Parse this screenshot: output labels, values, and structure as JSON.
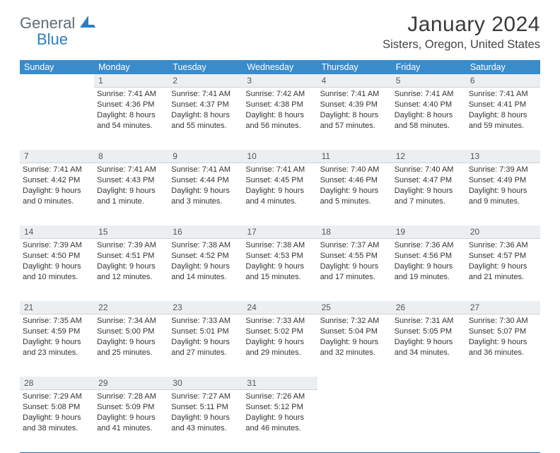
{
  "brand": {
    "general": "General",
    "blue": "Blue"
  },
  "title": "January 2024",
  "location": "Sisters, Oregon, United States",
  "colors": {
    "header_bg": "#3a8bca",
    "header_text": "#ffffff",
    "daynum_bg": "#eceff1",
    "divider": "#2f74aa",
    "body_text": "#333333",
    "logo_gray": "#5a6a77",
    "logo_blue": "#2c7fbf"
  },
  "days_of_week": [
    "Sunday",
    "Monday",
    "Tuesday",
    "Wednesday",
    "Thursday",
    "Friday",
    "Saturday"
  ],
  "start_weekday": 1,
  "days": [
    {
      "n": 1,
      "sunrise": "7:41 AM",
      "sunset": "4:36 PM",
      "daylight": "8 hours and 54 minutes."
    },
    {
      "n": 2,
      "sunrise": "7:41 AM",
      "sunset": "4:37 PM",
      "daylight": "8 hours and 55 minutes."
    },
    {
      "n": 3,
      "sunrise": "7:42 AM",
      "sunset": "4:38 PM",
      "daylight": "8 hours and 56 minutes."
    },
    {
      "n": 4,
      "sunrise": "7:41 AM",
      "sunset": "4:39 PM",
      "daylight": "8 hours and 57 minutes."
    },
    {
      "n": 5,
      "sunrise": "7:41 AM",
      "sunset": "4:40 PM",
      "daylight": "8 hours and 58 minutes."
    },
    {
      "n": 6,
      "sunrise": "7:41 AM",
      "sunset": "4:41 PM",
      "daylight": "8 hours and 59 minutes."
    },
    {
      "n": 7,
      "sunrise": "7:41 AM",
      "sunset": "4:42 PM",
      "daylight": "9 hours and 0 minutes."
    },
    {
      "n": 8,
      "sunrise": "7:41 AM",
      "sunset": "4:43 PM",
      "daylight": "9 hours and 1 minute."
    },
    {
      "n": 9,
      "sunrise": "7:41 AM",
      "sunset": "4:44 PM",
      "daylight": "9 hours and 3 minutes."
    },
    {
      "n": 10,
      "sunrise": "7:41 AM",
      "sunset": "4:45 PM",
      "daylight": "9 hours and 4 minutes."
    },
    {
      "n": 11,
      "sunrise": "7:40 AM",
      "sunset": "4:46 PM",
      "daylight": "9 hours and 5 minutes."
    },
    {
      "n": 12,
      "sunrise": "7:40 AM",
      "sunset": "4:47 PM",
      "daylight": "9 hours and 7 minutes."
    },
    {
      "n": 13,
      "sunrise": "7:39 AM",
      "sunset": "4:49 PM",
      "daylight": "9 hours and 9 minutes."
    },
    {
      "n": 14,
      "sunrise": "7:39 AM",
      "sunset": "4:50 PM",
      "daylight": "9 hours and 10 minutes."
    },
    {
      "n": 15,
      "sunrise": "7:39 AM",
      "sunset": "4:51 PM",
      "daylight": "9 hours and 12 minutes."
    },
    {
      "n": 16,
      "sunrise": "7:38 AM",
      "sunset": "4:52 PM",
      "daylight": "9 hours and 14 minutes."
    },
    {
      "n": 17,
      "sunrise": "7:38 AM",
      "sunset": "4:53 PM",
      "daylight": "9 hours and 15 minutes."
    },
    {
      "n": 18,
      "sunrise": "7:37 AM",
      "sunset": "4:55 PM",
      "daylight": "9 hours and 17 minutes."
    },
    {
      "n": 19,
      "sunrise": "7:36 AM",
      "sunset": "4:56 PM",
      "daylight": "9 hours and 19 minutes."
    },
    {
      "n": 20,
      "sunrise": "7:36 AM",
      "sunset": "4:57 PM",
      "daylight": "9 hours and 21 minutes."
    },
    {
      "n": 21,
      "sunrise": "7:35 AM",
      "sunset": "4:59 PM",
      "daylight": "9 hours and 23 minutes."
    },
    {
      "n": 22,
      "sunrise": "7:34 AM",
      "sunset": "5:00 PM",
      "daylight": "9 hours and 25 minutes."
    },
    {
      "n": 23,
      "sunrise": "7:33 AM",
      "sunset": "5:01 PM",
      "daylight": "9 hours and 27 minutes."
    },
    {
      "n": 24,
      "sunrise": "7:33 AM",
      "sunset": "5:02 PM",
      "daylight": "9 hours and 29 minutes."
    },
    {
      "n": 25,
      "sunrise": "7:32 AM",
      "sunset": "5:04 PM",
      "daylight": "9 hours and 32 minutes."
    },
    {
      "n": 26,
      "sunrise": "7:31 AM",
      "sunset": "5:05 PM",
      "daylight": "9 hours and 34 minutes."
    },
    {
      "n": 27,
      "sunrise": "7:30 AM",
      "sunset": "5:07 PM",
      "daylight": "9 hours and 36 minutes."
    },
    {
      "n": 28,
      "sunrise": "7:29 AM",
      "sunset": "5:08 PM",
      "daylight": "9 hours and 38 minutes."
    },
    {
      "n": 29,
      "sunrise": "7:28 AM",
      "sunset": "5:09 PM",
      "daylight": "9 hours and 41 minutes."
    },
    {
      "n": 30,
      "sunrise": "7:27 AM",
      "sunset": "5:11 PM",
      "daylight": "9 hours and 43 minutes."
    },
    {
      "n": 31,
      "sunrise": "7:26 AM",
      "sunset": "5:12 PM",
      "daylight": "9 hours and 46 minutes."
    }
  ],
  "labels": {
    "sunrise": "Sunrise:",
    "sunset": "Sunset:",
    "daylight": "Daylight:"
  }
}
